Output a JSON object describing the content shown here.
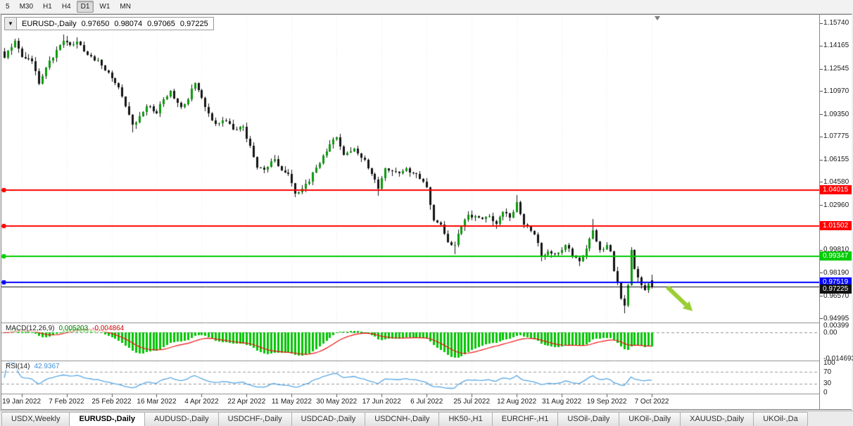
{
  "toolbar": {
    "timeframes": [
      {
        "label": "5",
        "active": false
      },
      {
        "label": "M30",
        "active": false
      },
      {
        "label": "H1",
        "active": false
      },
      {
        "label": "H4",
        "active": false
      },
      {
        "label": "D1",
        "active": true
      },
      {
        "label": "W1",
        "active": false
      },
      {
        "label": "MN",
        "active": false
      }
    ]
  },
  "chart": {
    "header": {
      "dropdown_glyph": "▼",
      "title": "EURUSD-,Daily",
      "open": "0.97650",
      "high": "0.98074",
      "low": "0.97065",
      "close": "0.97225"
    },
    "y_axis": {
      "top_price": 1.16333,
      "bottom_price": 0.94699,
      "ticks": [
        "1.15740",
        "1.14165",
        "1.12545",
        "1.10970",
        "1.09350",
        "1.07775",
        "1.06155",
        "1.04580",
        "1.02960",
        "1.01385",
        "0.99810",
        "0.98190",
        "0.96570",
        "0.94995"
      ]
    },
    "x_axis": {
      "first_bar_index": 5,
      "bars_per_label": 13,
      "labels": [
        "19 Jan 2022",
        "7 Feb 2022",
        "25 Feb 2022",
        "16 Mar 2022",
        "4 Apr 2022",
        "22 Apr 2022",
        "11 May 2022",
        "30 May 2022",
        "17 Jun 2022",
        "6 Jul 2022",
        "25 Jul 2022",
        "12 Aug 2022",
        "31 Aug 2022",
        "19 Sep 2022",
        "7 Oct 2022"
      ]
    },
    "hlines": [
      {
        "price": 1.04015,
        "label": "1.04015",
        "color": "#ff0000",
        "thickness": 2
      },
      {
        "price": 1.01502,
        "label": "1.01502",
        "color": "#ff0000",
        "thickness": 2
      },
      {
        "price": 0.99347,
        "label": "0.99347",
        "color": "#00cc00",
        "thickness": 2
      },
      {
        "price": 0.97519,
        "label": "0.97519",
        "color": "#0000ff",
        "thickness": 2
      }
    ],
    "current_price": {
      "price": 0.97225,
      "label": "0.97225",
      "color": "#111111"
    },
    "arrow": {
      "color": "#9acd32",
      "from_bar": 191.5,
      "from_price": 0.972,
      "to_bar": 198.8,
      "to_price": 0.955
    },
    "colors": {
      "bull": "#0a9a0a",
      "bear": "#141414",
      "wick": "#141414",
      "grid": "#e8e8e8",
      "separator": "#8c8c8c"
    }
  },
  "chart_data": {
    "type": "candlestick",
    "symbol": "EURUSD-",
    "timeframe": "Daily",
    "bar_count": 188,
    "close_anchors": [
      [
        0,
        1.133
      ],
      [
        2,
        1.1408
      ],
      [
        3,
        1.1448
      ],
      [
        5,
        1.1338
      ],
      [
        8,
        1.1308
      ],
      [
        10,
        1.115
      ],
      [
        12,
        1.1262
      ],
      [
        15,
        1.1388
      ],
      [
        17,
        1.1452
      ],
      [
        19,
        1.1418
      ],
      [
        21,
        1.1443
      ],
      [
        24,
        1.1352
      ],
      [
        27,
        1.1318
      ],
      [
        29,
        1.1242
      ],
      [
        31,
        1.1186
      ],
      [
        33,
        1.1122
      ],
      [
        35,
        1.0988
      ],
      [
        37,
        1.086
      ],
      [
        39,
        1.0922
      ],
      [
        41,
        1.0992
      ],
      [
        44,
        1.0938
      ],
      [
        46,
        1.1038
      ],
      [
        48,
        1.1098
      ],
      [
        51,
        1.0984
      ],
      [
        53,
        1.104
      ],
      [
        55,
        1.1152
      ],
      [
        57,
        1.1048
      ],
      [
        60,
        1.0892
      ],
      [
        62,
        1.0872
      ],
      [
        64,
        1.0888
      ],
      [
        66,
        1.0828
      ],
      [
        69,
        1.0848
      ],
      [
        71,
        1.0712
      ],
      [
        73,
        1.0558
      ],
      [
        75,
        1.0542
      ],
      [
        78,
        1.0618
      ],
      [
        80,
        1.0538
      ],
      [
        82,
        1.0512
      ],
      [
        84,
        1.0378
      ],
      [
        86,
        1.0412
      ],
      [
        88,
        1.0462
      ],
      [
        90,
        1.0558
      ],
      [
        94,
        1.0722
      ],
      [
        96,
        1.0772
      ],
      [
        98,
        1.0648
      ],
      [
        101,
        1.0692
      ],
      [
        104,
        1.0612
      ],
      [
        106,
        1.0516
      ],
      [
        108,
        1.041
      ],
      [
        110,
        1.0552
      ],
      [
        113,
        1.0528
      ],
      [
        116,
        1.0552
      ],
      [
        118,
        1.0518
      ],
      [
        120,
        1.0482
      ],
      [
        122,
        1.0422
      ],
      [
        124,
        1.0186
      ],
      [
        126,
        1.0158
      ],
      [
        128,
        1.0034
      ],
      [
        130,
        1.0016
      ],
      [
        132,
        1.0142
      ],
      [
        134,
        1.0228
      ],
      [
        136,
        1.0218
      ],
      [
        138,
        1.0198
      ],
      [
        140,
        1.0218
      ],
      [
        142,
        1.0162
      ],
      [
        144,
        1.0246
      ],
      [
        146,
        1.021
      ],
      [
        148,
        1.0318
      ],
      [
        150,
        1.0158
      ],
      [
        153,
        1.0088
      ],
      [
        155,
        0.9938
      ],
      [
        157,
        0.9968
      ],
      [
        160,
        0.9962
      ],
      [
        162,
        1.0012
      ],
      [
        164,
        0.9942
      ],
      [
        166,
        0.9902
      ],
      [
        168,
        0.9992
      ],
      [
        170,
        1.0118
      ],
      [
        172,
        0.9978
      ],
      [
        174,
        1.0012
      ],
      [
        175,
        0.9968
      ],
      [
        176,
        0.9832
      ],
      [
        177,
        0.9748
      ],
      [
        178,
        0.9638
      ],
      [
        179,
        0.9588
      ],
      [
        180,
        0.9732
      ],
      [
        181,
        0.9982
      ],
      [
        182,
        0.9848
      ],
      [
        183,
        0.9788
      ],
      [
        184,
        0.9732
      ],
      [
        185,
        0.9698
      ],
      [
        186,
        0.9742
      ],
      [
        187,
        0.97225
      ]
    ],
    "wick_overrides": {
      "17": {
        "high": 1.1495
      },
      "21": {
        "high": 1.1476
      },
      "37": {
        "low": 1.0806
      },
      "84": {
        "low": 1.035
      },
      "108": {
        "low": 1.0359
      },
      "130": {
        "low": 0.9952
      },
      "148": {
        "high": 1.0368
      },
      "155": {
        "low": 0.99
      },
      "166": {
        "low": 0.9864
      },
      "170": {
        "high": 1.0198
      },
      "179": {
        "low": 0.9536
      },
      "181": {
        "high": 0.9999
      },
      "187": {
        "open": 0.9765,
        "high": 0.98074,
        "low": 0.97065,
        "close": 0.97225
      }
    }
  },
  "indicators": {
    "macd": {
      "label": "MACD(12,26,9)",
      "main_value": "0.005203",
      "signal_value": "-0.004864",
      "fast": 12,
      "slow": 26,
      "signal": 9,
      "range": {
        "top": 0.0052,
        "bottom": -0.0155
      },
      "ticks": [
        {
          "label": "0.00399",
          "value": 0.00399
        },
        {
          "label": "0.00",
          "value": 0.0
        },
        {
          "label": "-0.014693",
          "value": -0.014693
        }
      ],
      "colors": {
        "histogram": "#00c400",
        "signal": "#ee1111",
        "zero_line": "#909090"
      }
    },
    "rsi": {
      "label": "RSI(14)",
      "value": "42.9367",
      "period": 14,
      "levels": [
        70,
        30
      ],
      "ticks": [
        {
          "label": "100",
          "value": 100
        },
        {
          "label": "70",
          "value": 70
        },
        {
          "label": "30",
          "value": 30
        },
        {
          "label": "0",
          "value": 0
        }
      ],
      "colors": {
        "line": "#56a6e3",
        "level_line": "#9a9a9a"
      }
    }
  },
  "tabs": {
    "items": [
      {
        "label": "USDX,Weekly",
        "active": false
      },
      {
        "label": "EURUSD-,Daily",
        "active": true
      },
      {
        "label": "AUDUSD-,Daily",
        "active": false
      },
      {
        "label": "USDCHF-,Daily",
        "active": false
      },
      {
        "label": "USDCAD-,Daily",
        "active": false
      },
      {
        "label": "USDCNH-,Daily",
        "active": false
      },
      {
        "label": "HK50-,H1",
        "active": false
      },
      {
        "label": "EURCHF-,H1",
        "active": false
      },
      {
        "label": "USOil-,Daily",
        "active": false
      },
      {
        "label": "UKOil-,Daily",
        "active": false
      },
      {
        "label": "XAUUSD-,Daily",
        "active": false
      },
      {
        "label": "UKOil-,Da",
        "active": false
      }
    ]
  }
}
